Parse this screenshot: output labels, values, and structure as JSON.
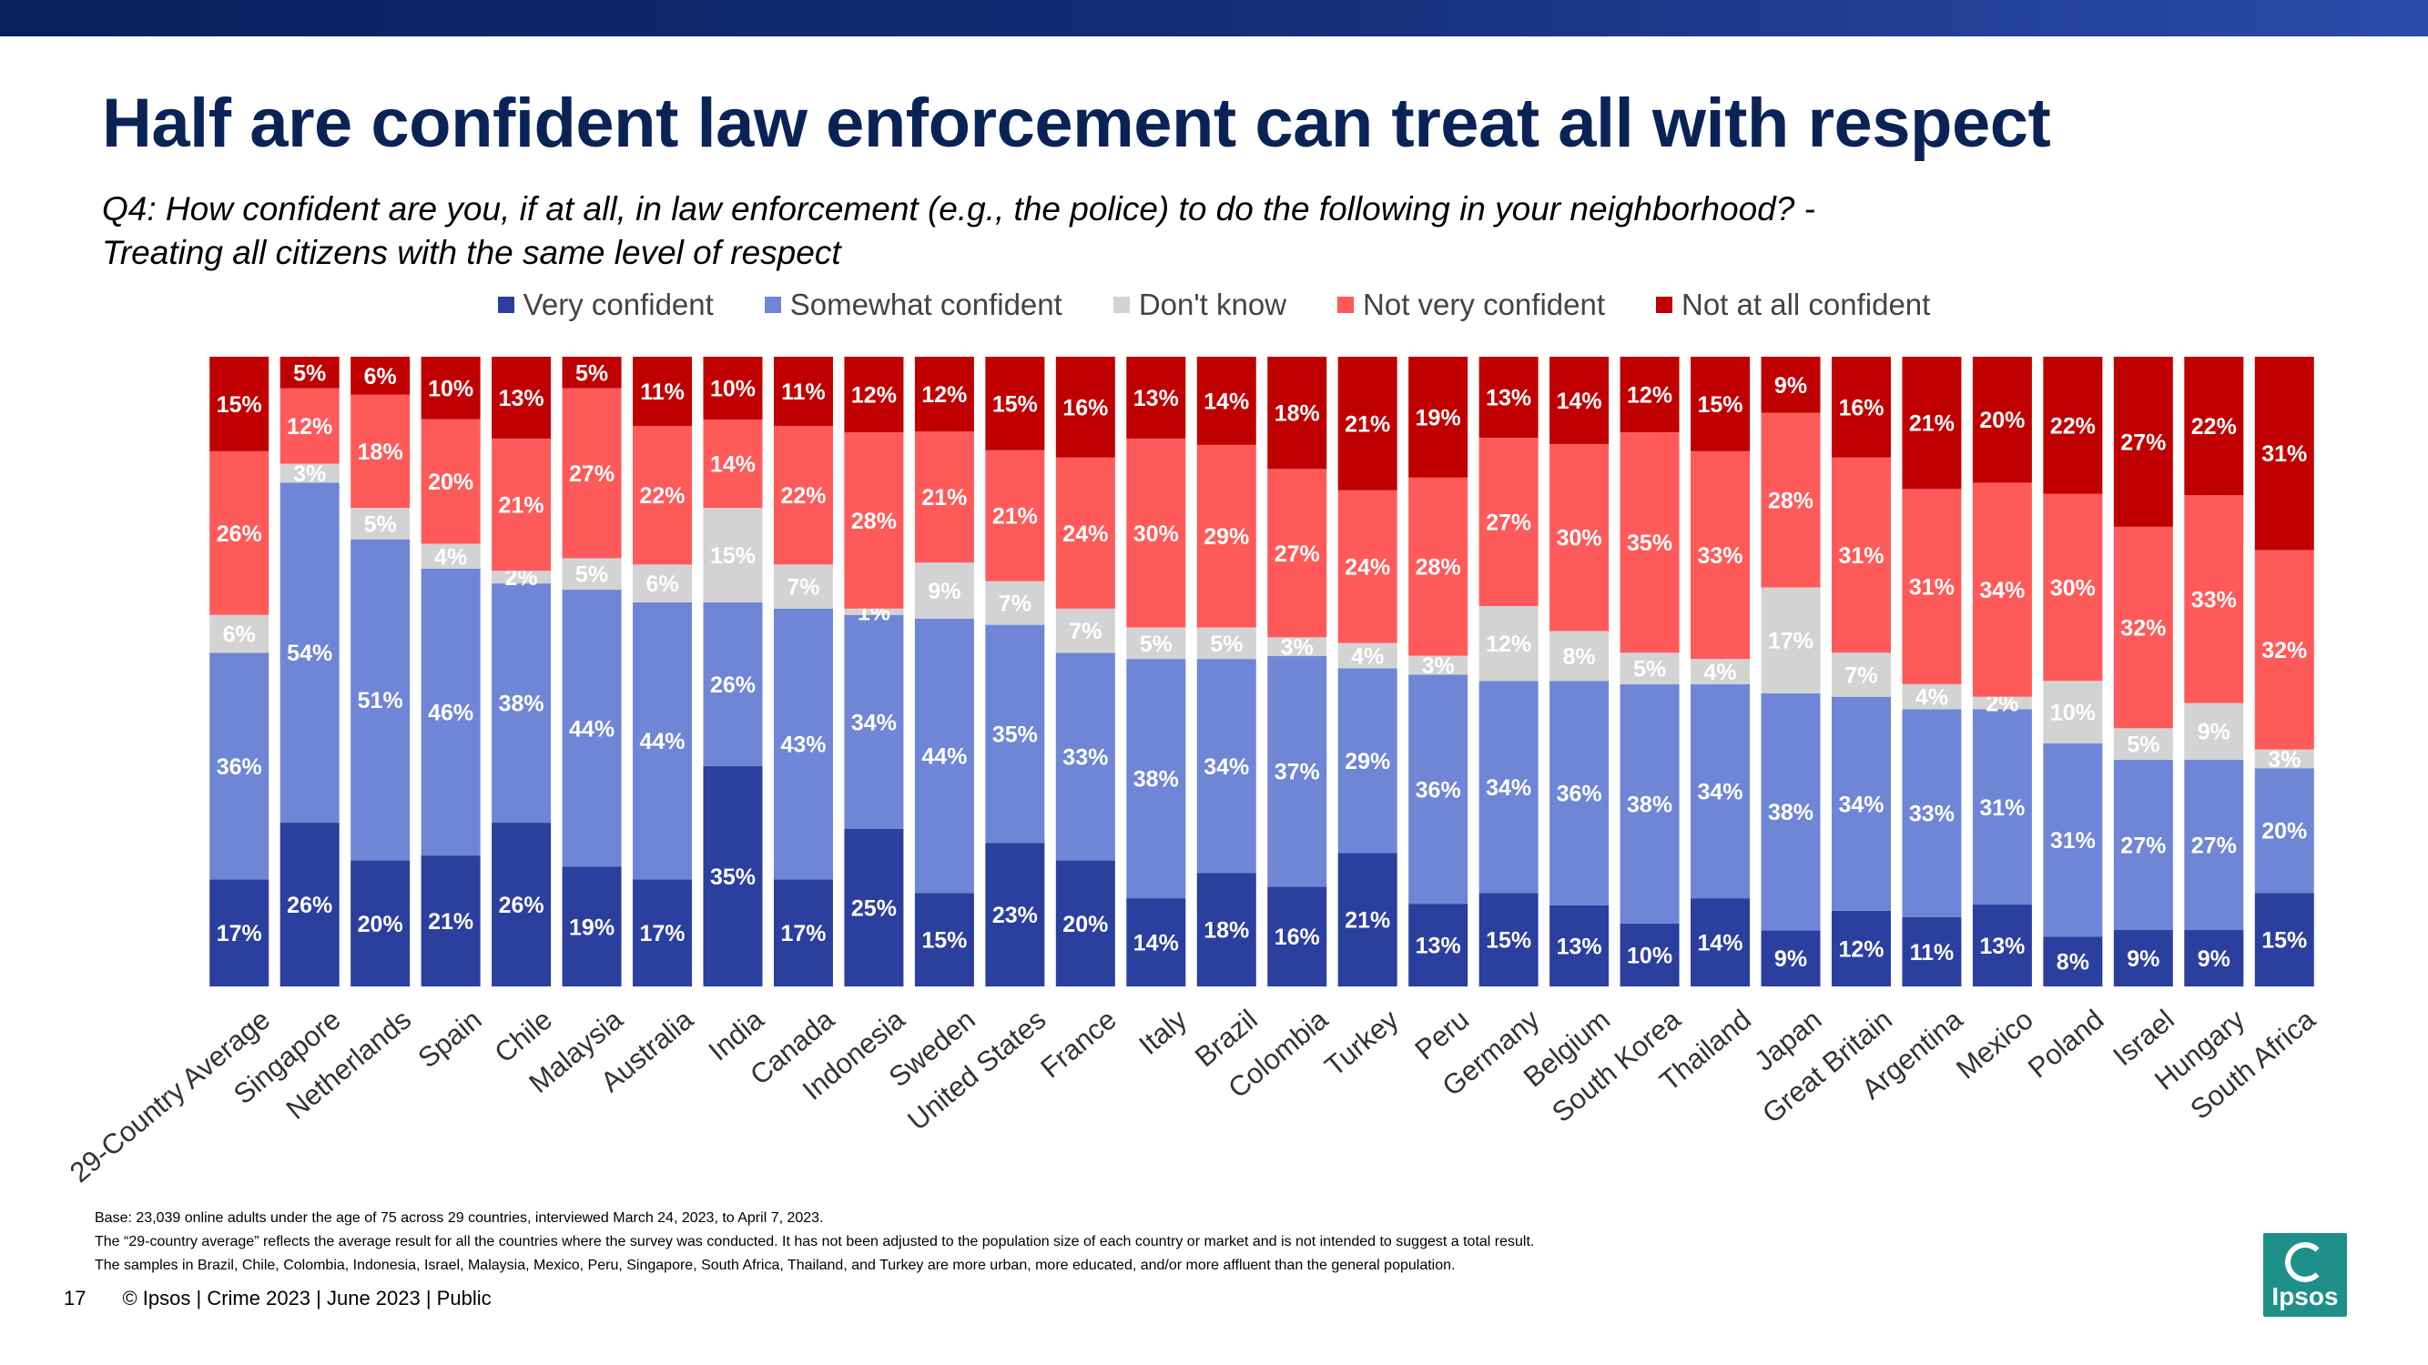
{
  "title": "Half are confident law enforcement can treat all with respect",
  "subtitle_line1": "Q4: How confident are you, if at all, in law enforcement (e.g., the police) to do the following in your neighborhood? -",
  "subtitle_line2": "Treating all citizens with the same level of respect",
  "colors": {
    "very": "#2b3f9e",
    "somewhat": "#6f86d6",
    "dontknow": "#d3d3d3",
    "notvery": "#ff5a5a",
    "notatall": "#c00000"
  },
  "chart_data": {
    "type": "bar",
    "stacked": true,
    "ylim": [
      0,
      100
    ],
    "legend_position": "top-center",
    "categories": [
      "29-Country Average",
      "Singapore",
      "Netherlands",
      "Spain",
      "Chile",
      "Malaysia",
      "Australia",
      "India",
      "Canada",
      "Indonesia",
      "Sweden",
      "United States",
      "France",
      "Italy",
      "Brazil",
      "Colombia",
      "Turkey",
      "Peru",
      "Germany",
      "Belgium",
      "South Korea",
      "Thailand",
      "Japan",
      "Great Britain",
      "Argentina",
      "Mexico",
      "Poland",
      "Israel",
      "Hungary",
      "South Africa"
    ],
    "series": [
      {
        "name": "Very confident",
        "key": "very",
        "values": [
          17,
          26,
          20,
          21,
          26,
          19,
          17,
          35,
          17,
          25,
          15,
          23,
          20,
          14,
          18,
          16,
          21,
          13,
          15,
          13,
          10,
          14,
          9,
          12,
          11,
          13,
          8,
          9,
          9,
          15
        ]
      },
      {
        "name": "Somewhat confident",
        "key": "somewhat",
        "values": [
          36,
          54,
          51,
          46,
          38,
          44,
          44,
          26,
          43,
          34,
          44,
          35,
          33,
          38,
          34,
          37,
          29,
          36,
          34,
          36,
          38,
          34,
          38,
          34,
          33,
          31,
          31,
          27,
          27,
          20
        ]
      },
      {
        "name": "Don't know",
        "key": "dontknow",
        "values": [
          6,
          3,
          5,
          4,
          2,
          5,
          6,
          15,
          7,
          1,
          9,
          7,
          7,
          5,
          5,
          3,
          4,
          3,
          12,
          8,
          5,
          4,
          17,
          7,
          4,
          2,
          10,
          5,
          9,
          3
        ]
      },
      {
        "name": "Not very confident",
        "key": "notvery",
        "values": [
          26,
          12,
          18,
          20,
          21,
          27,
          22,
          14,
          22,
          28,
          21,
          21,
          24,
          30,
          29,
          27,
          24,
          28,
          27,
          30,
          35,
          33,
          28,
          31,
          31,
          34,
          30,
          32,
          33,
          32
        ]
      },
      {
        "name": "Not at all confident",
        "key": "notatall",
        "values": [
          15,
          5,
          6,
          10,
          13,
          5,
          11,
          10,
          11,
          12,
          12,
          15,
          16,
          13,
          14,
          18,
          21,
          19,
          13,
          14,
          12,
          15,
          9,
          16,
          21,
          20,
          22,
          27,
          22,
          31
        ]
      }
    ],
    "value_suffix": "%"
  },
  "footnotes": {
    "base": "Base: 23,039 online adults under the age of 75 across 29 countries, interviewed March 24, 2023, to April 7, 2023.",
    "average": "The “29-country average” reflects the average result for all the countries where the survey was conducted. It has not been adjusted to the population size of each country or market and is not intended to suggest a total result.",
    "samples": "The samples in Brazil, Chile, Colombia, Indonesia, Israel, Malaysia, Mexico, Peru, Singapore, South Africa, Thailand, and Turkey are more urban, more educated, and/or more affluent than the general population."
  },
  "footer": {
    "page_number": "17",
    "source": "© Ipsos | Crime 2023 | June 2023 | Public"
  },
  "logo": {
    "text": "Ipsos"
  }
}
